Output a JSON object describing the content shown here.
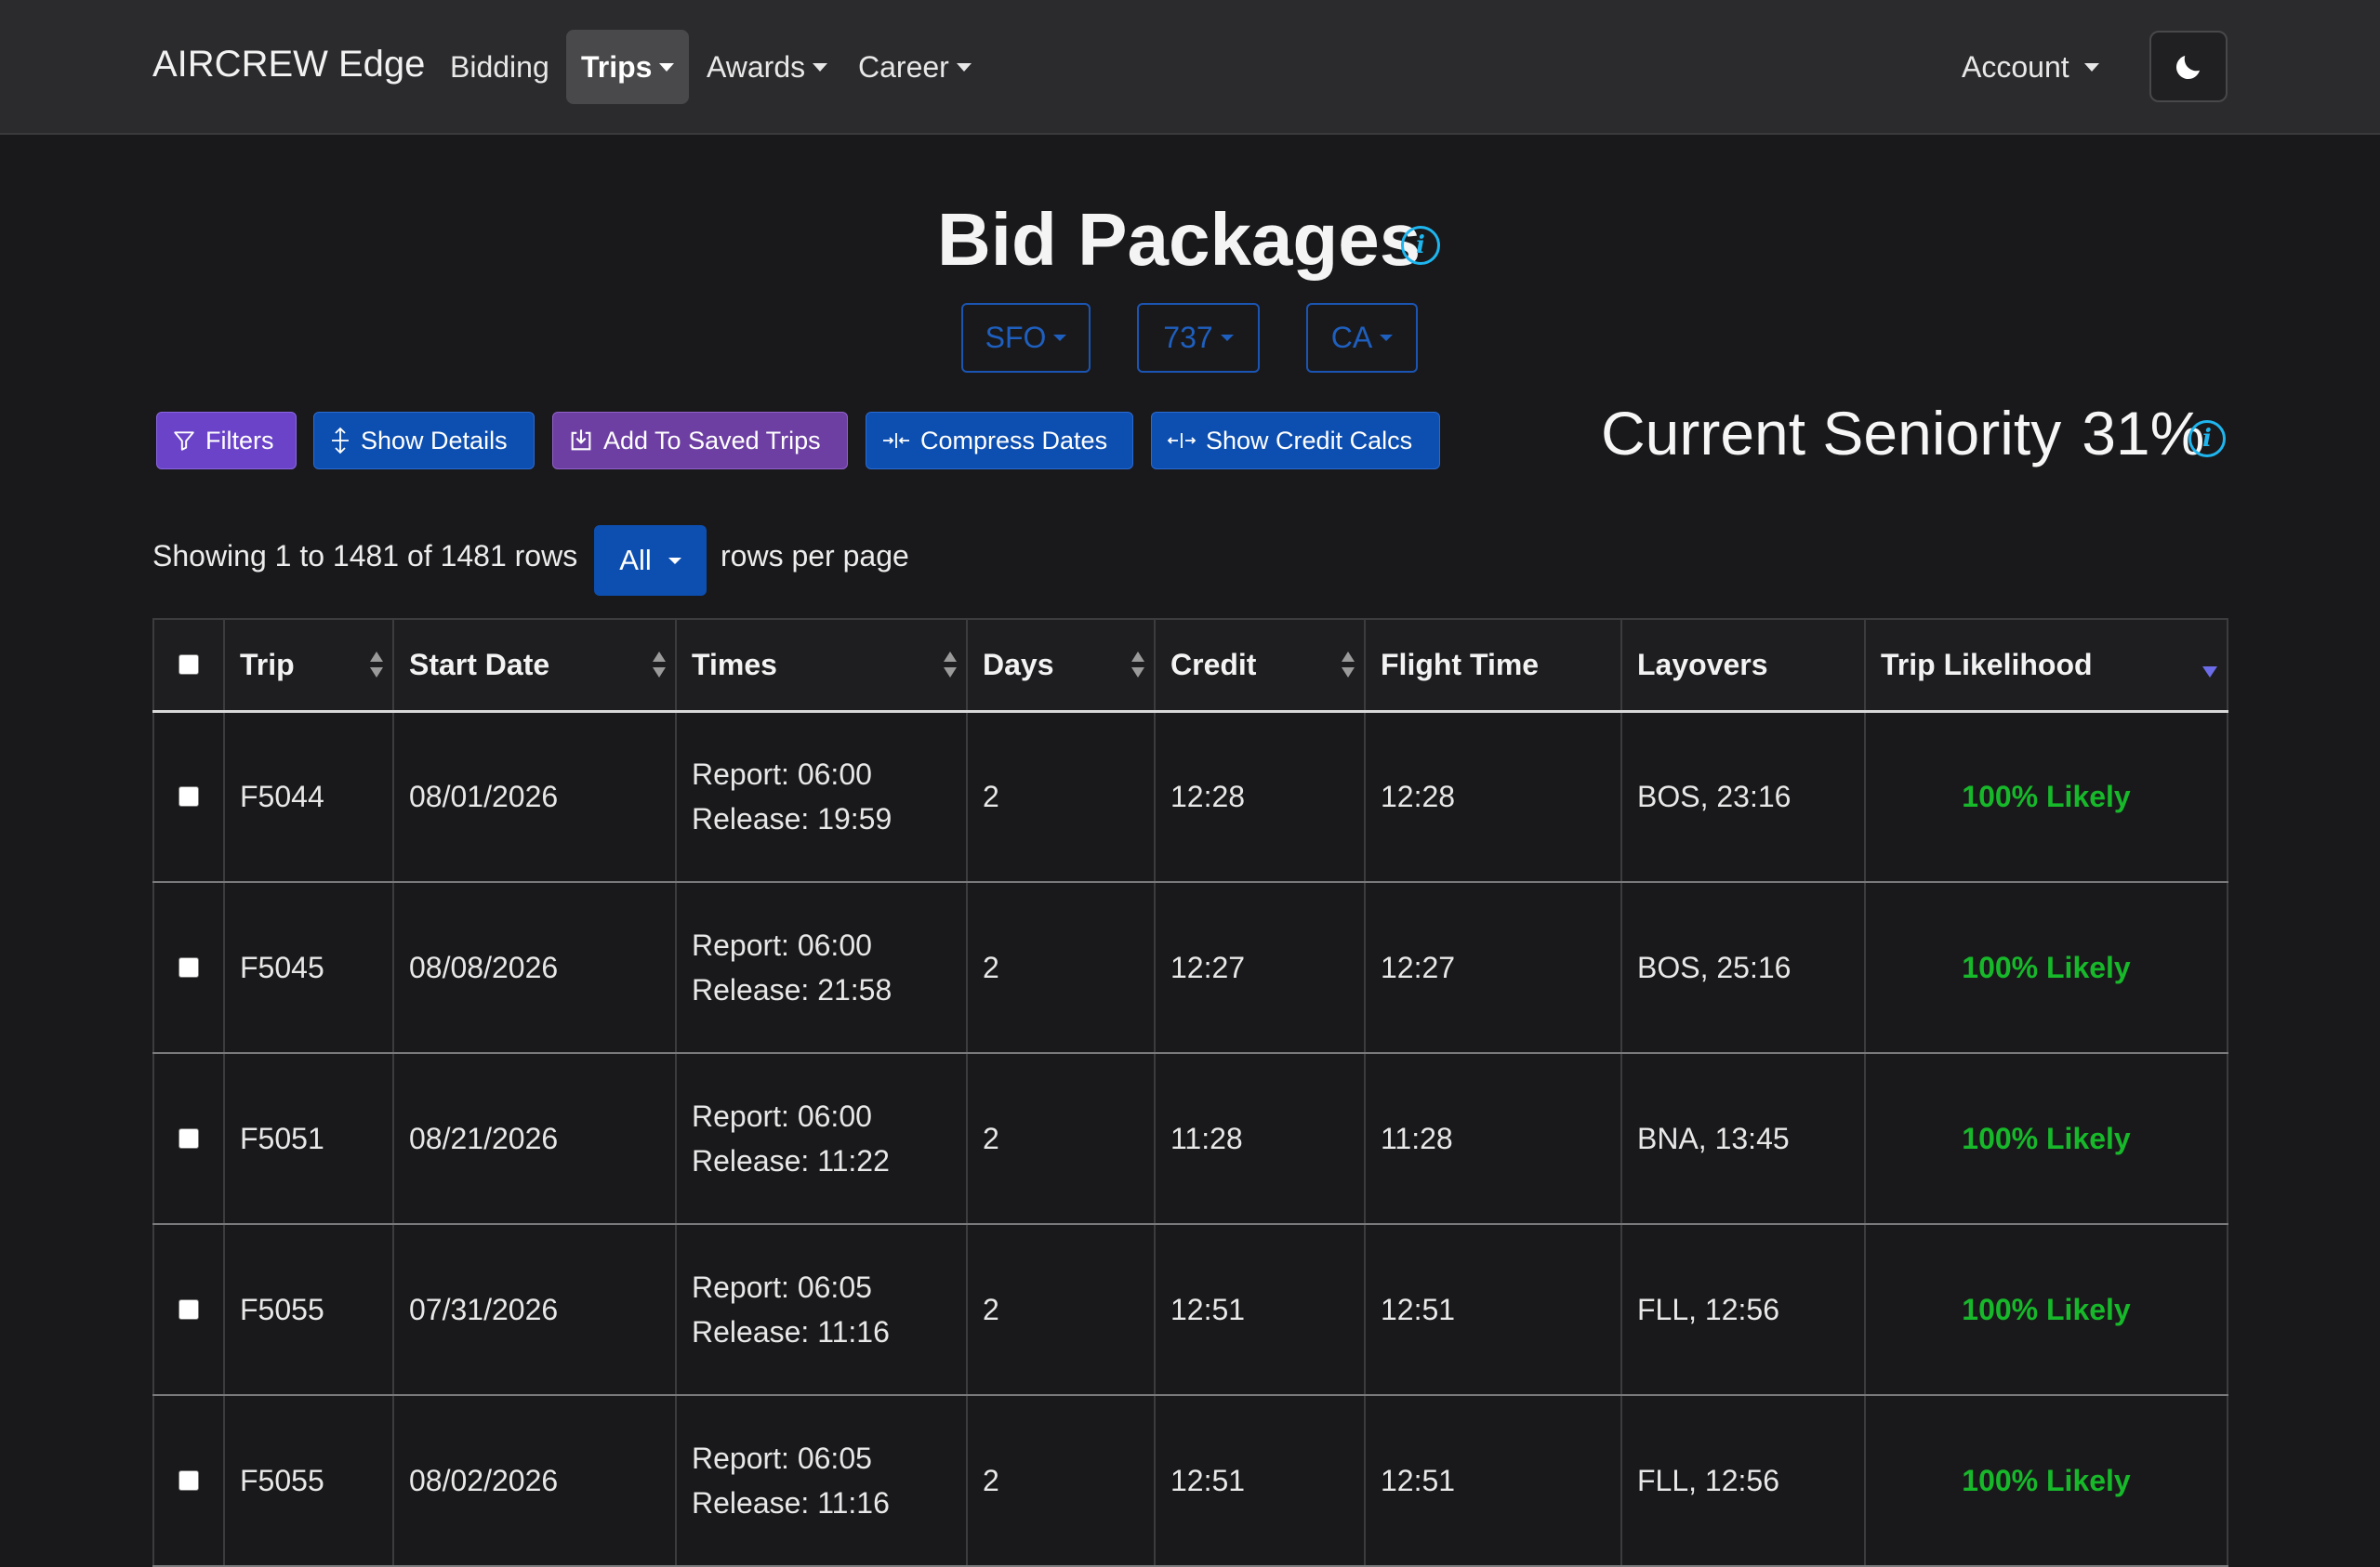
{
  "navbar": {
    "brand": "AIRCREW Edge",
    "items": [
      {
        "label": "Bidding"
      },
      {
        "label": "Trips"
      },
      {
        "label": "Awards"
      },
      {
        "label": "Career"
      }
    ],
    "account": "Account",
    "theme_icon": "moon-icon"
  },
  "header": {
    "title": "Bid Packages",
    "filters": {
      "base": "SFO",
      "equipment": "737",
      "seat": "CA"
    }
  },
  "toolbar": {
    "filters": "Filters",
    "show_details": "Show Details",
    "add_saved": "Add To Saved Trips",
    "compress_dates": "Compress Dates",
    "show_credit": "Show Credit Calcs"
  },
  "seniority": {
    "label": "Current Seniority",
    "value": "31%"
  },
  "pagination": {
    "showing": "Showing 1 to 1481 of 1481 rows",
    "per_page": "All",
    "suffix": "rows per page"
  },
  "table": {
    "columns": [
      "Trip",
      "Start Date",
      "Times",
      "Days",
      "Credit",
      "Flight Time",
      "Layovers",
      "Trip Likelihood"
    ],
    "rows": [
      {
        "trip": "F5044",
        "start": "08/01/2026",
        "report": "Report: 06:00",
        "release": "Release: 19:59",
        "days": "2",
        "credit": "12:28",
        "flight": "12:28",
        "layovers": "BOS, 23:16",
        "likelihood": "100% Likely"
      },
      {
        "trip": "F5045",
        "start": "08/08/2026",
        "report": "Report: 06:00",
        "release": "Release: 21:58",
        "days": "2",
        "credit": "12:27",
        "flight": "12:27",
        "layovers": "BOS, 25:16",
        "likelihood": "100% Likely"
      },
      {
        "trip": "F5051",
        "start": "08/21/2026",
        "report": "Report: 06:00",
        "release": "Release: 11:22",
        "days": "2",
        "credit": "11:28",
        "flight": "11:28",
        "layovers": "BNA, 13:45",
        "likelihood": "100% Likely"
      },
      {
        "trip": "F5055",
        "start": "07/31/2026",
        "report": "Report: 06:05",
        "release": "Release: 11:16",
        "days": "2",
        "credit": "12:51",
        "flight": "12:51",
        "layovers": "FLL, 12:56",
        "likelihood": "100% Likely"
      },
      {
        "trip": "F5055",
        "start": "08/02/2026",
        "report": "Report: 06:05",
        "release": "Release: 11:16",
        "days": "2",
        "credit": "12:51",
        "flight": "12:51",
        "layovers": "FLL, 12:56",
        "likelihood": "100% Likely"
      }
    ]
  }
}
